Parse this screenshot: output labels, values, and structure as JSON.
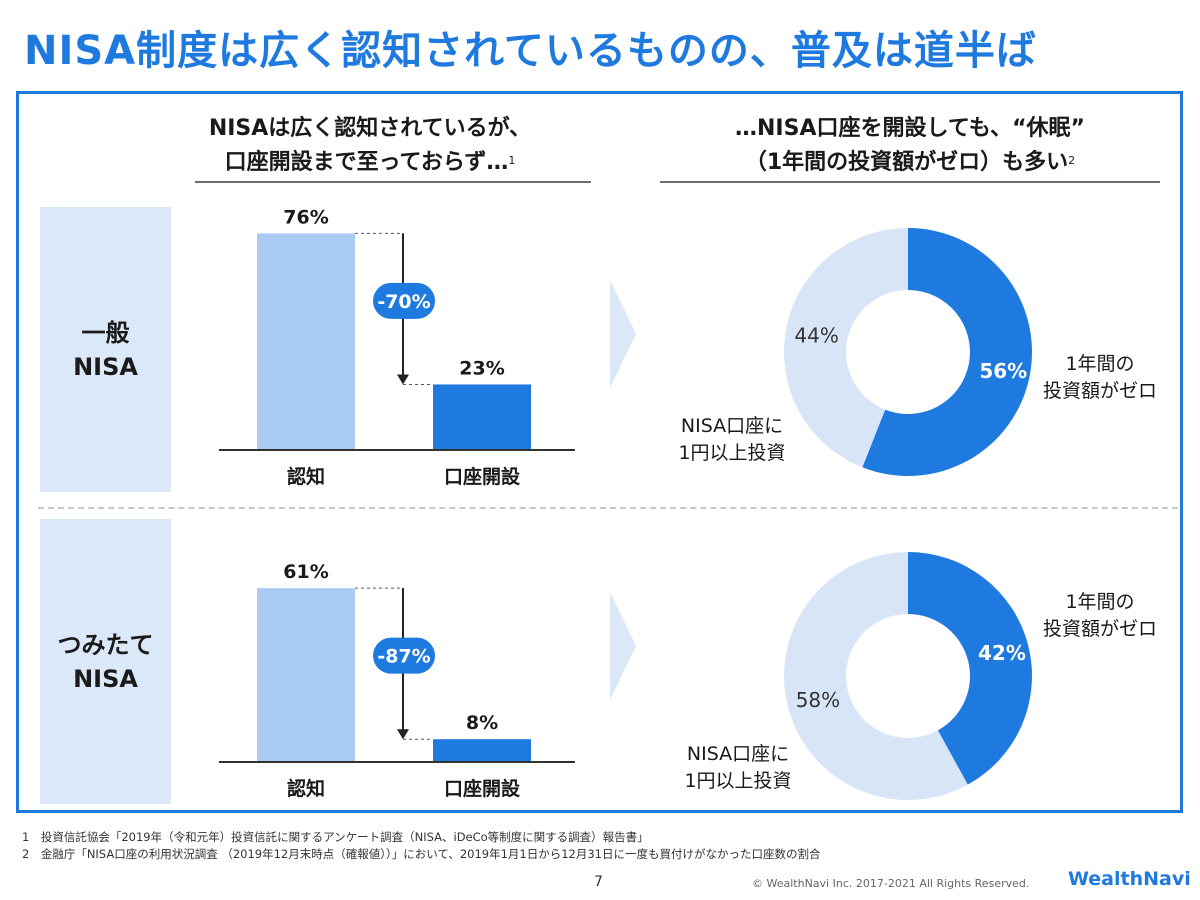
{
  "title": "NISA制度は広く認知されているものの、普及は道半ば",
  "left_header": {
    "line1": "NISAは広く認知されているが、",
    "line2": "口座開設まで至っておらず…",
    "ref": "1"
  },
  "right_header": {
    "line1": "…NISA口座を開設しても、“休眠”",
    "line2": "（1年間の投資額がゼロ）も多い",
    "ref": "2"
  },
  "rows": [
    {
      "label_line1": "一般",
      "label_line2": "NISA"
    },
    {
      "label_line1": "つみたて",
      "label_line2": "NISA"
    }
  ],
  "chart_data": [
    {
      "type": "bar",
      "title": "一般NISA",
      "categories": [
        "認知",
        "口座開設"
      ],
      "values": [
        76,
        23
      ],
      "value_labels": [
        "76%",
        "23%"
      ],
      "change_label": "-70%",
      "ylim": [
        0,
        100
      ],
      "colors": [
        "#a9cbf3",
        "#1f7ae0"
      ]
    },
    {
      "type": "pie",
      "title": "一般NISA",
      "slices": [
        {
          "label": "1年間の投資額がゼロ",
          "value": 56,
          "value_label": "56%",
          "color": "#1f7ae0"
        },
        {
          "label": "NISA口座に1円以上投資",
          "value": 44,
          "value_label": "44%",
          "color": "#d7e5f7"
        }
      ]
    },
    {
      "type": "bar",
      "title": "つみたてNISA",
      "categories": [
        "認知",
        "口座開設"
      ],
      "values": [
        61,
        8
      ],
      "value_labels": [
        "61%",
        "8%"
      ],
      "change_label": "-87%",
      "ylim": [
        0,
        100
      ],
      "colors": [
        "#a9cbf3",
        "#1f7ae0"
      ]
    },
    {
      "type": "pie",
      "title": "つみたてNISA",
      "slices": [
        {
          "label": "1年間の投資額がゼロ",
          "value": 42,
          "value_label": "42%",
          "color": "#1f7ae0"
        },
        {
          "label": "NISA口座に1円以上投資",
          "value": 58,
          "value_label": "58%",
          "color": "#d7e5f7"
        }
      ]
    }
  ],
  "donut_labels": {
    "zero_line1": "1年間の",
    "zero_line2": "投資額がゼロ",
    "invest_line1": "NISA口座に",
    "invest_line2": "1円以上投資"
  },
  "footnotes": [
    "1　投資信託協会「2019年（令和元年）投資信託に関するアンケート調査（NISA、iDeCo等制度に関する調査）報告書」",
    "2　金融庁「NISA口座の利用状況調査 （2019年12月末時点（確報値））」において、2019年1月1日から12月31日に一度も買付けがなかった口座数の割合"
  ],
  "page_number": "7",
  "copyright": "© WealthNavi Inc. 2017-2021 All Rights Reserved.",
  "brand": "WealthNavi"
}
